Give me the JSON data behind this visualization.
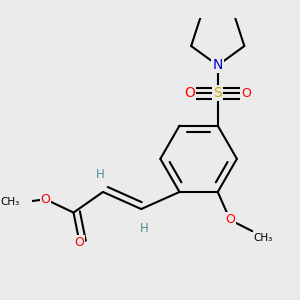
{
  "bg_color": "#ebebeb",
  "bond_color": "#000000",
  "bond_width": 1.5,
  "atom_colors": {
    "O": "#ff0000",
    "N": "#0000cc",
    "S": "#ccaa00",
    "H": "#4a9090"
  }
}
